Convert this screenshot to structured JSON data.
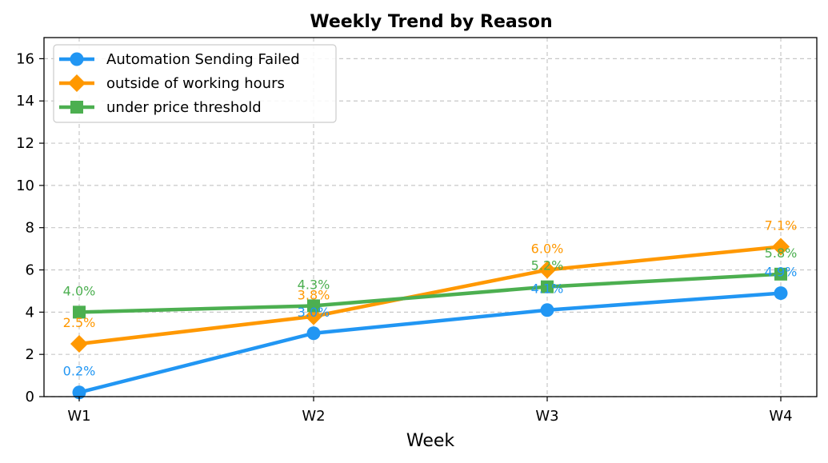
{
  "chart_data": {
    "type": "line",
    "title": "Weekly Trend by Reason",
    "xlabel": "Week",
    "ylabel": "",
    "categories": [
      "W1",
      "W2",
      "W3",
      "W4"
    ],
    "ylim": [
      0,
      17
    ],
    "yticks": [
      0,
      2,
      4,
      6,
      8,
      10,
      12,
      14,
      16
    ],
    "grid": true,
    "legend_position": "top-left",
    "series": [
      {
        "name": "Automation Sending Failed",
        "values": [
          0.2,
          3.0,
          4.1,
          4.9
        ],
        "labels": [
          "0.2%",
          "3.0%",
          "4.1%",
          "4.9%"
        ],
        "color": "#2196F3",
        "marker": "circle"
      },
      {
        "name": "outside of working hours",
        "values": [
          2.5,
          3.8,
          6.0,
          7.1
        ],
        "labels": [
          "2.5%",
          "3.8%",
          "6.0%",
          "7.1%"
        ],
        "color": "#FF9800",
        "marker": "diamond"
      },
      {
        "name": "under price threshold",
        "values": [
          4.0,
          4.3,
          5.2,
          5.8
        ],
        "labels": [
          "4.0%",
          "4.3%",
          "5.2%",
          "5.8%"
        ],
        "color": "#4CAF50",
        "marker": "square"
      }
    ]
  }
}
